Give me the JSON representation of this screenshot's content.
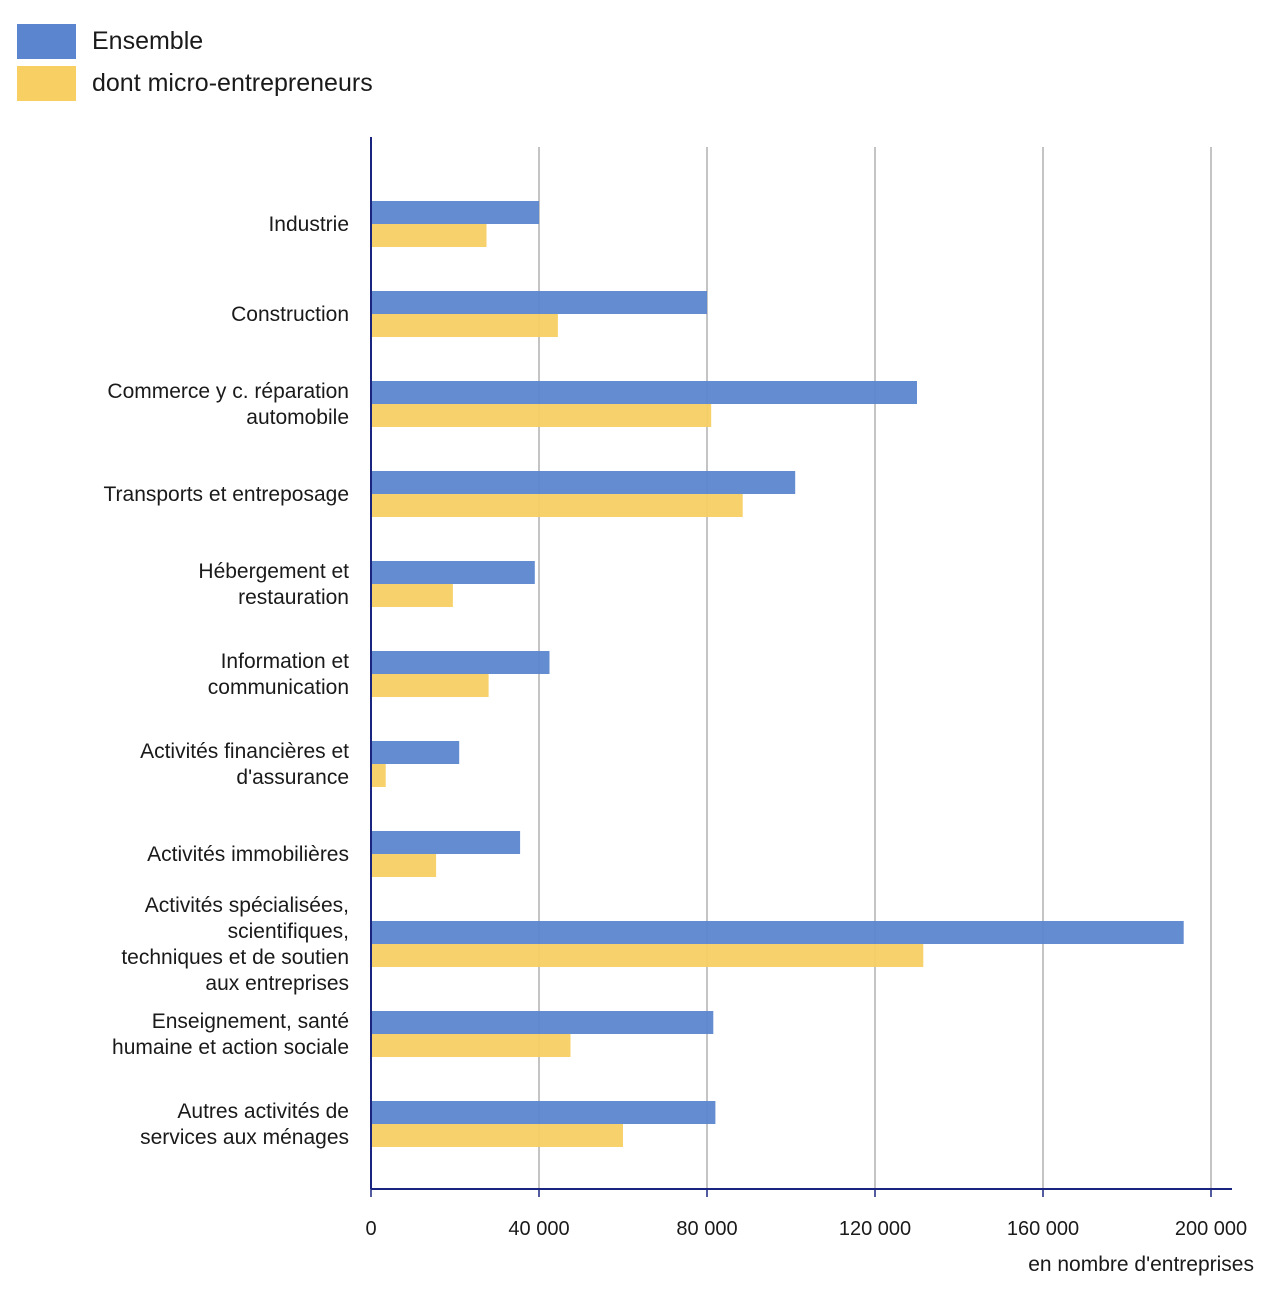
{
  "colors": {
    "ensemble": "#5b86cf",
    "micro": "#f7cf63",
    "axis": "#1a2580",
    "grid": "#8a8a8a"
  },
  "legend": {
    "ensemble": "Ensemble",
    "micro": "dont micro-entrepreneurs"
  },
  "chart_data": {
    "type": "bar",
    "orientation": "horizontal",
    "xlabel": "en nombre d'entreprises",
    "xlim": [
      0,
      200000
    ],
    "xticks": [
      0,
      40000,
      80000,
      120000,
      160000,
      200000
    ],
    "xtick_labels": [
      "0",
      "40 000",
      "80 000",
      "120 000",
      "160 000",
      "200 000"
    ],
    "grid": "vertical",
    "legend_position": "top-left",
    "categories": [
      [
        "Industrie"
      ],
      [
        "Construction"
      ],
      [
        "Commerce y c. réparation",
        "automobile"
      ],
      [
        "Transports et entreposage"
      ],
      [
        "Hébergement et",
        "restauration"
      ],
      [
        "Information et",
        "communication"
      ],
      [
        "Activités financières et",
        "d'assurance"
      ],
      [
        "Activités immobilières"
      ],
      [
        "Activités spécialisées,",
        "scientifiques,",
        "techniques et de soutien",
        "aux entreprises"
      ],
      [
        "Enseignement, santé",
        "humaine et action sociale"
      ],
      [
        "Autres activités de",
        "services aux ménages"
      ]
    ],
    "series": [
      {
        "name": "Ensemble",
        "values": [
          40000,
          80000,
          130000,
          101000,
          39000,
          42500,
          21000,
          35500,
          193500,
          81500,
          82000
        ]
      },
      {
        "name": "dont micro-entrepreneurs",
        "values": [
          27500,
          44500,
          81000,
          88500,
          19500,
          28000,
          3500,
          15500,
          131500,
          47500,
          60000
        ]
      }
    ]
  }
}
